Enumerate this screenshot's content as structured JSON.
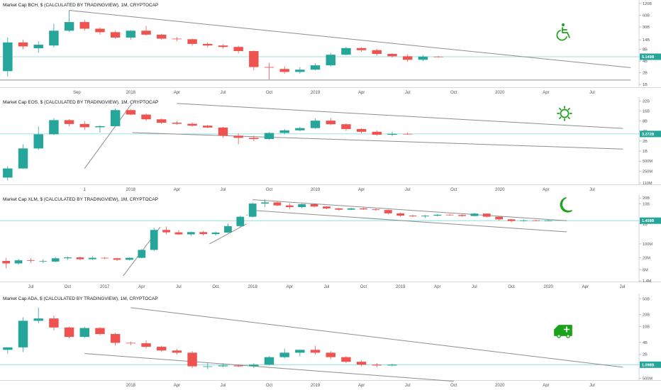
{
  "colors": {
    "up": "#26a69a",
    "down": "#ef5350",
    "icon": "#1aa31a",
    "level": "#7fd8d8",
    "trend": "#8e8e8e",
    "badge": "#26a69a"
  },
  "chart_data": [
    {
      "type": "candlestick",
      "title": "Market Cap BCH, $ (CALCULATED BY TRADINGVIEW), 1M, CRYPTOCAP",
      "icon": "wheelchair-icon",
      "yscale": "log",
      "y_ticks": [
        "120B",
        "60B",
        "30B",
        "14B",
        "8B",
        "4B",
        "2B",
        "1B"
      ],
      "y_tick_values": [
        120,
        60,
        30,
        14,
        8,
        4,
        2,
        1
      ],
      "x_labels": [
        "Sep",
        "2018",
        "Apr",
        "Jul",
        "Oct",
        "2019",
        "Apr",
        "Jul",
        "Oct",
        "2020",
        "Apr",
        "Jul"
      ],
      "x_label_pos": [
        4.5,
        8,
        11,
        14,
        17,
        20,
        23,
        26,
        29,
        32,
        35,
        38
      ],
      "x_range": [
        -0.5,
        41
      ],
      "y_range": [
        0.85,
        130
      ],
      "current_value": 5.149,
      "current_label": "5.149B",
      "candles": [
        {
          "o": 2.2,
          "h": 16,
          "l": 1.6,
          "c": 12
        },
        {
          "o": 12,
          "h": 14,
          "l": 8,
          "c": 9.5
        },
        {
          "o": 8.5,
          "h": 13,
          "l": 6.5,
          "c": 10.5
        },
        {
          "o": 10,
          "h": 36,
          "l": 9,
          "c": 24
        },
        {
          "o": 24,
          "h": 80,
          "l": 22,
          "c": 40
        },
        {
          "o": 40,
          "h": 46,
          "l": 24,
          "c": 27
        },
        {
          "o": 27,
          "h": 29,
          "l": 19,
          "c": 22
        },
        {
          "o": 22,
          "h": 24,
          "l": 15,
          "c": 16
        },
        {
          "o": 16,
          "h": 25,
          "l": 14,
          "c": 24
        },
        {
          "o": 24,
          "h": 32,
          "l": 18,
          "c": 19
        },
        {
          "o": 19,
          "h": 20,
          "l": 14,
          "c": 15
        },
        {
          "o": 15,
          "h": 16.5,
          "l": 13,
          "c": 14.5
        },
        {
          "o": 14.5,
          "h": 15,
          "l": 10,
          "c": 11
        },
        {
          "o": 11,
          "h": 12,
          "l": 9,
          "c": 10
        },
        {
          "o": 10,
          "h": 10.8,
          "l": 8.3,
          "c": 9.2
        },
        {
          "o": 9.2,
          "h": 9.8,
          "l": 6.3,
          "c": 7.2
        },
        {
          "o": 7.2,
          "h": 7.5,
          "l": 2.3,
          "c": 2.8
        },
        {
          "o": 2.8,
          "h": 3.6,
          "l": 1.35,
          "c": 2.7
        },
        {
          "o": 2.5,
          "h": 2.9,
          "l": 1.9,
          "c": 2.1
        },
        {
          "o": 2.1,
          "h": 2.8,
          "l": 1.9,
          "c": 2.4
        },
        {
          "o": 2.4,
          "h": 3.5,
          "l": 2.3,
          "c": 3.1
        },
        {
          "o": 3.1,
          "h": 6.5,
          "l": 2.9,
          "c": 5.8
        },
        {
          "o": 5.8,
          "h": 9.2,
          "l": 5.6,
          "c": 8.6
        },
        {
          "o": 8.6,
          "h": 9.0,
          "l": 6.9,
          "c": 7.6
        },
        {
          "o": 7.6,
          "h": 8.2,
          "l": 5.5,
          "c": 6.1
        },
        {
          "o": 6.1,
          "h": 6.4,
          "l": 4.9,
          "c": 5.3
        },
        {
          "o": 5.3,
          "h": 5.9,
          "l": 3.8,
          "c": 4.3
        },
        {
          "o": 4.3,
          "h": 5.7,
          "l": 4.0,
          "c": 5.2
        },
        {
          "o": 5.2,
          "h": 5.4,
          "l": 4.9,
          "c": 5.149
        }
      ],
      "trendlines": [
        {
          "x1": 4,
          "y1": 80,
          "x2": 40.5,
          "y2": 2.7
        },
        {
          "x1": -0.5,
          "y1": 1.3,
          "x2": 40.5,
          "y2": 1.3
        }
      ]
    },
    {
      "type": "candlestick",
      "title": "Market Cap EOS, $ (CALCULATED BY TRADINGVIEW), 1M, CRYPTOCAP",
      "icon": "sun-icon",
      "yscale": "log",
      "y_ticks": [
        "32B",
        "16B",
        "8B",
        "4B",
        "2B",
        "1B",
        "500M",
        "250M",
        "110M"
      ],
      "y_tick_values": [
        32,
        16,
        8,
        4,
        2,
        1,
        0.5,
        0.25,
        0.11
      ],
      "x_labels": [
        "1",
        "2018",
        "Apr",
        "Jul",
        "Oct",
        "2019",
        "Apr",
        "Jul",
        "Oct",
        "2020",
        "Apr",
        "Jul"
      ],
      "x_label_pos": [
        5,
        8,
        11,
        14,
        17,
        20,
        23,
        26,
        29,
        32,
        35,
        38
      ],
      "x_range": [
        -0.5,
        41
      ],
      "y_range": [
        0.1,
        36
      ],
      "current_value": 3.272,
      "current_label": "3.272B",
      "candles": [
        {
          "o": 0.16,
          "h": 0.35,
          "l": 0.13,
          "c": 0.3
        },
        {
          "o": 0.3,
          "h": 1.6,
          "l": 0.29,
          "c": 1.2
        },
        {
          "o": 1.2,
          "h": 5.5,
          "l": 1.1,
          "c": 3.2
        },
        {
          "o": 3.2,
          "h": 9.8,
          "l": 3.0,
          "c": 8.5
        },
        {
          "o": 8.5,
          "h": 9.2,
          "l": 5.5,
          "c": 6.5
        },
        {
          "o": 6.5,
          "h": 8.0,
          "l": 4.3,
          "c": 5.2
        },
        {
          "o": 5.2,
          "h": 6.0,
          "l": 3.6,
          "c": 5.6
        },
        {
          "o": 5.6,
          "h": 19,
          "l": 5.4,
          "c": 17
        },
        {
          "o": 17,
          "h": 18,
          "l": 12,
          "c": 12.5
        },
        {
          "o": 12.5,
          "h": 13.5,
          "l": 8.0,
          "c": 9.0
        },
        {
          "o": 9.0,
          "h": 9.5,
          "l": 6.5,
          "c": 7.1
        },
        {
          "o": 7.1,
          "h": 7.9,
          "l": 6.1,
          "c": 6.6
        },
        {
          "o": 6.6,
          "h": 7.2,
          "l": 5.4,
          "c": 5.8
        },
        {
          "o": 5.8,
          "h": 6.1,
          "l": 4.9,
          "c": 5.1
        },
        {
          "o": 5.1,
          "h": 5.3,
          "l": 2.5,
          "c": 2.9
        },
        {
          "o": 2.9,
          "h": 3.4,
          "l": 1.6,
          "c": 2.5
        },
        {
          "o": 2.5,
          "h": 2.9,
          "l": 2.0,
          "c": 2.3
        },
        {
          "o": 2.3,
          "h": 3.7,
          "l": 2.2,
          "c": 3.5
        },
        {
          "o": 3.5,
          "h": 4.6,
          "l": 3.2,
          "c": 4.2
        },
        {
          "o": 4.2,
          "h": 5.4,
          "l": 3.9,
          "c": 4.9
        },
        {
          "o": 4.9,
          "h": 9.5,
          "l": 4.7,
          "c": 8.2
        },
        {
          "o": 8.2,
          "h": 9.8,
          "l": 6.0,
          "c": 6.4
        },
        {
          "o": 6.4,
          "h": 6.8,
          "l": 4.0,
          "c": 4.6
        },
        {
          "o": 4.6,
          "h": 4.9,
          "l": 3.4,
          "c": 3.8
        },
        {
          "o": 3.8,
          "h": 4.2,
          "l": 2.9,
          "c": 3.1
        },
        {
          "o": 3.1,
          "h": 3.8,
          "l": 2.8,
          "c": 3.3
        },
        {
          "o": 3.3,
          "h": 3.6,
          "l": 3.1,
          "c": 3.272
        }
      ],
      "trendlines": [
        {
          "x1": 5,
          "y1": 0.3,
          "x2": 8.1,
          "y2": 28
        },
        {
          "x1": 8.1,
          "y1": 3.6,
          "x2": 40,
          "y2": 1.15
        },
        {
          "x1": 11,
          "y1": 27,
          "x2": 40,
          "y2": 4.8
        }
      ]
    },
    {
      "type": "candlestick",
      "title": "Market Cap XLM, $ (CALCULATED BY TRADINGVIEW), 1M, CRYPTOCAP",
      "icon": "moon-icon",
      "yscale": "log",
      "y_ticks": [
        "20B",
        "10B",
        "1B",
        "100M",
        "20M",
        "5M",
        "1.4M"
      ],
      "y_tick_values": [
        20,
        10,
        1,
        0.1,
        0.02,
        0.005,
        0.0014
      ],
      "x_labels": [
        "Jul",
        "Oct",
        "2017",
        "Apr",
        "Jul",
        "Oct",
        "2018",
        "Apr",
        "Jul",
        "Oct",
        "2019",
        "Apr",
        "Jul",
        "Oct",
        "2020",
        "Apr",
        "Jul"
      ],
      "x_label_pos": [
        2,
        5,
        8,
        11,
        14,
        17,
        20,
        23,
        26,
        29,
        32,
        35,
        38,
        41,
        44,
        47,
        50
      ],
      "x_range": [
        -0.5,
        51.3
      ],
      "y_range": [
        0.0013,
        24
      ],
      "current_value": 1.459,
      "current_label": "1.459B",
      "candles": [
        {
          "o": 0.014,
          "h": 0.02,
          "l": 0.006,
          "c": 0.0105
        },
        {
          "o": 0.0105,
          "h": 0.018,
          "l": 0.009,
          "c": 0.015
        },
        {
          "o": 0.015,
          "h": 0.019,
          "l": 0.011,
          "c": 0.014
        },
        {
          "o": 0.014,
          "h": 0.017,
          "l": 0.011,
          "c": 0.014
        },
        {
          "o": 0.013,
          "h": 0.022,
          "l": 0.012,
          "c": 0.019
        },
        {
          "o": 0.019,
          "h": 0.023,
          "l": 0.016,
          "c": 0.021
        },
        {
          "o": 0.021,
          "h": 0.023,
          "l": 0.015,
          "c": 0.017
        },
        {
          "o": 0.017,
          "h": 0.024,
          "l": 0.016,
          "c": 0.02
        },
        {
          "o": 0.02,
          "h": 0.022,
          "l": 0.017,
          "c": 0.019
        },
        {
          "o": 0.019,
          "h": 0.02,
          "l": 0.014,
          "c": 0.016
        },
        {
          "o": 0.016,
          "h": 0.021,
          "l": 0.015,
          "c": 0.02
        },
        {
          "o": 0.02,
          "h": 0.055,
          "l": 0.019,
          "c": 0.05
        },
        {
          "o": 0.05,
          "h": 0.65,
          "l": 0.045,
          "c": 0.5
        },
        {
          "o": 0.5,
          "h": 0.75,
          "l": 0.3,
          "c": 0.38
        },
        {
          "o": 0.38,
          "h": 0.5,
          "l": 0.28,
          "c": 0.3
        },
        {
          "o": 0.3,
          "h": 0.42,
          "l": 0.25,
          "c": 0.39
        },
        {
          "o": 0.39,
          "h": 0.45,
          "l": 0.27,
          "c": 0.31
        },
        {
          "o": 0.31,
          "h": 0.42,
          "l": 0.26,
          "c": 0.37
        },
        {
          "o": 0.37,
          "h": 1.05,
          "l": 0.35,
          "c": 0.78
        },
        {
          "o": 0.78,
          "h": 2.6,
          "l": 0.7,
          "c": 2.3
        },
        {
          "o": 2.3,
          "h": 12,
          "l": 2.1,
          "c": 10.5
        },
        {
          "o": 10.5,
          "h": 17,
          "l": 7,
          "c": 12
        },
        {
          "o": 12,
          "h": 13,
          "l": 7.8,
          "c": 8.5
        },
        {
          "o": 8.5,
          "h": 11,
          "l": 5.5,
          "c": 7.0
        },
        {
          "o": 7.0,
          "h": 10.5,
          "l": 6.0,
          "c": 9.8
        },
        {
          "o": 9.8,
          "h": 10.5,
          "l": 6.8,
          "c": 7.5
        },
        {
          "o": 7.5,
          "h": 7.9,
          "l": 5.5,
          "c": 6.0
        },
        {
          "o": 6.0,
          "h": 6.5,
          "l": 4.6,
          "c": 5.2
        },
        {
          "o": 5.2,
          "h": 6.5,
          "l": 5.0,
          "c": 6.0
        },
        {
          "o": 6.0,
          "h": 6.6,
          "l": 5.1,
          "c": 5.4
        },
        {
          "o": 5.4,
          "h": 6.0,
          "l": 4.7,
          "c": 5.0
        },
        {
          "o": 5.0,
          "h": 5.3,
          "l": 3.0,
          "c": 3.4
        },
        {
          "o": 3.4,
          "h": 3.7,
          "l": 2.3,
          "c": 2.6
        },
        {
          "o": 2.6,
          "h": 2.9,
          "l": 2.2,
          "c": 2.4
        },
        {
          "o": 2.4,
          "h": 2.8,
          "l": 2.0,
          "c": 2.6
        },
        {
          "o": 2.6,
          "h": 3.1,
          "l": 2.4,
          "c": 2.9
        },
        {
          "o": 2.9,
          "h": 3.2,
          "l": 2.6,
          "c": 2.8
        },
        {
          "o": 2.8,
          "h": 3.0,
          "l": 2.3,
          "c": 2.5
        },
        {
          "o": 2.5,
          "h": 3.6,
          "l": 2.4,
          "c": 3.3
        },
        {
          "o": 3.3,
          "h": 3.4,
          "l": 2.1,
          "c": 2.3
        },
        {
          "o": 2.3,
          "h": 2.4,
          "l": 1.5,
          "c": 1.7
        },
        {
          "o": 1.7,
          "h": 1.8,
          "l": 1.2,
          "c": 1.4
        },
        {
          "o": 1.4,
          "h": 1.7,
          "l": 1.3,
          "c": 1.5
        },
        {
          "o": 1.5,
          "h": 1.6,
          "l": 1.35,
          "c": 1.45
        },
        {
          "o": 1.45,
          "h": 1.6,
          "l": 1.38,
          "c": 1.459
        }
      ],
      "trendlines": [
        {
          "x1": 9.5,
          "y1": 0.0025,
          "x2": 12.5,
          "y2": 0.7
        },
        {
          "x1": 16.5,
          "y1": 0.1,
          "x2": 19.5,
          "y2": 1.0
        },
        {
          "x1": 19.5,
          "y1": 2.8,
          "x2": 19.6,
          "y2": 2.8
        },
        {
          "x1": 20,
          "y1": 4.8,
          "x2": 45.5,
          "y2": 0.4
        },
        {
          "x1": 20,
          "y1": 16.5,
          "x2": 45.5,
          "y2": 1.45
        }
      ]
    },
    {
      "type": "candlestick",
      "title": "Market Cap ADA, $ (CALCULATED BY TRADINGVIEW), 1M, CRYPTOCAP",
      "icon": "ambulance-icon",
      "yscale": "log",
      "y_ticks": [
        "50B",
        "20B",
        "10B",
        "4B",
        "2B",
        "500M"
      ],
      "y_tick_values": [
        50,
        20,
        10,
        4,
        2,
        0.5
      ],
      "x_labels": [
        "2018",
        "Apr",
        "Jul",
        "Oct",
        "2019",
        "Apr",
        "Jul",
        "Oct",
        "2020",
        "Apr",
        "Jul"
      ],
      "x_label_pos": [
        8,
        11,
        14,
        17,
        20,
        23,
        26,
        29,
        32,
        35,
        38
      ],
      "x_range": [
        -0.5,
        41
      ],
      "y_range": [
        0.45,
        60
      ],
      "current_value": 1.098,
      "current_label": "1.098B",
      "candles": [
        {
          "o": 2.6,
          "h": 3.0,
          "l": 2.1,
          "c": 3.0
        },
        {
          "o": 3.0,
          "h": 17,
          "l": 2.3,
          "c": 14
        },
        {
          "o": 14,
          "h": 30,
          "l": 12,
          "c": 16
        },
        {
          "o": 16,
          "h": 19,
          "l": 8,
          "c": 9.5
        },
        {
          "o": 9.5,
          "h": 10,
          "l": 5,
          "c": 5.5
        },
        {
          "o": 5.5,
          "h": 10,
          "l": 5.2,
          "c": 9.2
        },
        {
          "o": 9.2,
          "h": 9.8,
          "l": 6,
          "c": 6.5
        },
        {
          "o": 6.5,
          "h": 7,
          "l": 3.3,
          "c": 3.9
        },
        {
          "o": 3.9,
          "h": 4.2,
          "l": 3.4,
          "c": 3.8
        },
        {
          "o": 3.8,
          "h": 4.5,
          "l": 2.8,
          "c": 3.1
        },
        {
          "o": 3.1,
          "h": 3.3,
          "l": 2.3,
          "c": 2.5
        },
        {
          "o": 2.5,
          "h": 2.7,
          "l": 2.0,
          "c": 2.2
        },
        {
          "o": 2.2,
          "h": 2.4,
          "l": 0.9,
          "c": 1.0
        },
        {
          "o": 1.0,
          "h": 1.2,
          "l": 0.85,
          "c": 1.0
        },
        {
          "o": 1.0,
          "h": 1.2,
          "l": 0.95,
          "c": 1.05
        },
        {
          "o": 1.05,
          "h": 1.1,
          "l": 0.95,
          "c": 1.0
        },
        {
          "o": 1.0,
          "h": 1.2,
          "l": 0.9,
          "c": 1.1
        },
        {
          "o": 1.1,
          "h": 1.8,
          "l": 1.05,
          "c": 1.7
        },
        {
          "o": 1.7,
          "h": 2.8,
          "l": 1.6,
          "c": 2.2
        },
        {
          "o": 2.2,
          "h": 2.6,
          "l": 1.8,
          "c": 2.6
        },
        {
          "o": 2.6,
          "h": 3.3,
          "l": 2.0,
          "c": 2.2
        },
        {
          "o": 2.2,
          "h": 2.4,
          "l": 1.5,
          "c": 1.7
        },
        {
          "o": 1.7,
          "h": 1.8,
          "l": 1.2,
          "c": 1.3
        },
        {
          "o": 1.3,
          "h": 1.4,
          "l": 1.0,
          "c": 1.1
        },
        {
          "o": 1.1,
          "h": 1.2,
          "l": 0.95,
          "c": 1.05
        },
        {
          "o": 1.05,
          "h": 1.15,
          "l": 1.0,
          "c": 1.098
        }
      ],
      "trendlines": [
        {
          "x1": 8,
          "y1": 30,
          "x2": 40,
          "y2": 0.95
        },
        {
          "x1": 5,
          "y1": 2.1,
          "x2": 29,
          "y2": 0.42
        }
      ]
    }
  ]
}
